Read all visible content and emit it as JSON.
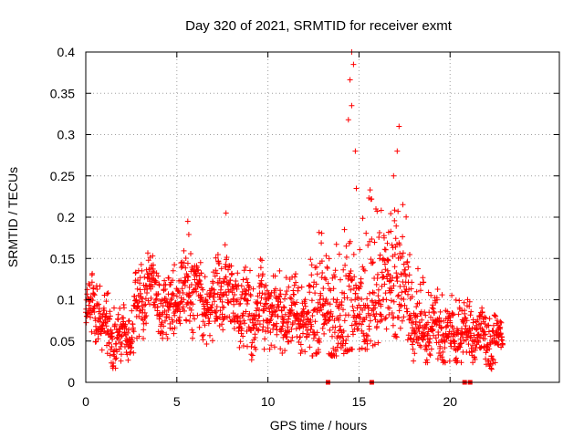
{
  "chart_data": {
    "type": "scatter",
    "title": "Day 320 of 2021, SRMTID for receiver exmt",
    "xlabel": "GPS time / hours",
    "ylabel": "SRMTID / TECUs",
    "xlim": [
      0,
      26
    ],
    "ylim": [
      0,
      0.4
    ],
    "x_ticks": [
      "0",
      "5",
      "10",
      "15",
      "20"
    ],
    "x_tick_values": [
      0,
      5,
      10,
      15,
      20
    ],
    "y_ticks": [
      "0",
      "0.05",
      "0.1",
      "0.15",
      "0.2",
      "0.25",
      "0.3",
      "0.35",
      "0.4"
    ],
    "y_tick_values": [
      0,
      0.05,
      0.1,
      0.15,
      0.2,
      0.25,
      0.3,
      0.35,
      0.4
    ],
    "grid": true,
    "marker": "plus",
    "color": "#ff0000",
    "note": "Dense scatter of several thousand points; envelope (min, median, max) per time bin estimated from the figure",
    "envelope": {
      "x": [
        0.0,
        0.5,
        1.0,
        1.5,
        2.0,
        2.5,
        3.0,
        3.5,
        4.0,
        4.5,
        5.0,
        5.5,
        6.0,
        6.5,
        7.0,
        7.5,
        8.0,
        8.5,
        9.0,
        9.5,
        10.0,
        10.5,
        11.0,
        11.5,
        12.0,
        12.5,
        13.0,
        13.5,
        14.0,
        14.5,
        15.0,
        15.5,
        16.0,
        16.5,
        17.0,
        17.5,
        18.0,
        18.5,
        19.0,
        19.5,
        20.0,
        20.5,
        21.0,
        21.5,
        22.0,
        22.5,
        22.9
      ],
      "min": [
        0.06,
        0.05,
        0.04,
        0.02,
        0.02,
        0.04,
        0.06,
        0.08,
        0.05,
        0.05,
        0.07,
        0.08,
        0.06,
        0.05,
        0.05,
        0.08,
        0.07,
        0.05,
        0.03,
        0.05,
        0.05,
        0.05,
        0.04,
        0.05,
        0.04,
        0.04,
        0.05,
        0.04,
        0.04,
        0.05,
        0.05,
        0.05,
        0.06,
        0.06,
        0.07,
        0.06,
        0.03,
        0.03,
        0.03,
        0.03,
        0.03,
        0.03,
        0.03,
        0.03,
        0.02,
        0.02,
        0.03
      ],
      "median": [
        0.09,
        0.09,
        0.07,
        0.05,
        0.05,
        0.07,
        0.09,
        0.12,
        0.1,
        0.09,
        0.1,
        0.11,
        0.12,
        0.1,
        0.09,
        0.12,
        0.11,
        0.09,
        0.08,
        0.09,
        0.09,
        0.08,
        0.08,
        0.08,
        0.07,
        0.07,
        0.09,
        0.07,
        0.07,
        0.1,
        0.1,
        0.09,
        0.1,
        0.11,
        0.14,
        0.12,
        0.07,
        0.06,
        0.06,
        0.06,
        0.06,
        0.06,
        0.06,
        0.06,
        0.05,
        0.05,
        0.05
      ],
      "max": [
        0.11,
        0.14,
        0.12,
        0.1,
        0.09,
        0.12,
        0.17,
        0.16,
        0.14,
        0.13,
        0.15,
        0.2,
        0.16,
        0.15,
        0.15,
        0.2,
        0.14,
        0.14,
        0.16,
        0.16,
        0.15,
        0.14,
        0.13,
        0.14,
        0.13,
        0.17,
        0.19,
        0.21,
        0.15,
        0.4,
        0.18,
        0.24,
        0.26,
        0.22,
        0.31,
        0.22,
        0.14,
        0.14,
        0.11,
        0.12,
        0.11,
        0.11,
        0.1,
        0.09,
        0.09,
        0.08,
        0.07
      ]
    },
    "peaks": [
      {
        "x": 14.6,
        "y": 0.4
      },
      {
        "x": 14.7,
        "y": 0.385
      },
      {
        "x": 14.6,
        "y": 0.335
      },
      {
        "x": 14.8,
        "y": 0.28
      },
      {
        "x": 17.2,
        "y": 0.31
      },
      {
        "x": 17.1,
        "y": 0.28
      },
      {
        "x": 16.9,
        "y": 0.25
      },
      {
        "x": 7.7,
        "y": 0.205
      },
      {
        "x": 5.6,
        "y": 0.195
      }
    ],
    "zero_markers": [
      13.3,
      15.7,
      20.8,
      21.1
    ]
  }
}
